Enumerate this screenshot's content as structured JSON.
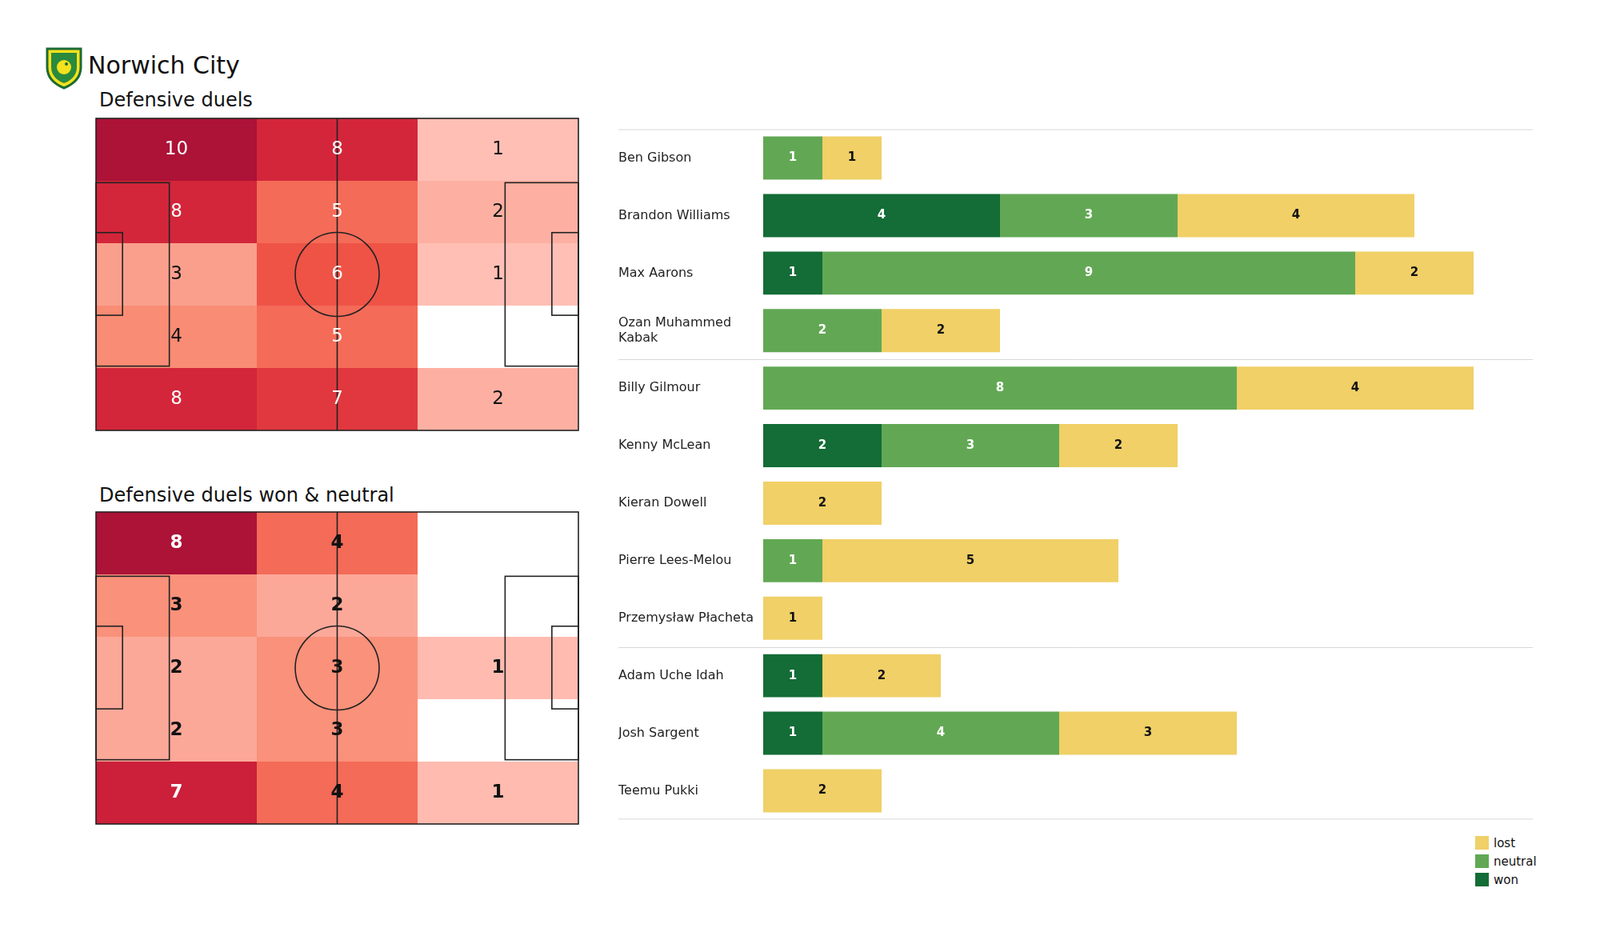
{
  "title": "Norwich City",
  "chart_data": [
    {
      "type": "heatmap",
      "title": "Defensive duels",
      "cells": [
        [
          10,
          8,
          1
        ],
        [
          8,
          5,
          2
        ],
        [
          3,
          6,
          1
        ],
        [
          4,
          5,
          null
        ],
        [
          8,
          7,
          2
        ]
      ]
    },
    {
      "type": "heatmap",
      "title": "Defensive duels won & neutral",
      "cells": [
        [
          8,
          4,
          null
        ],
        [
          3,
          2,
          null
        ],
        [
          2,
          3,
          1
        ],
        [
          2,
          3,
          null
        ],
        [
          7,
          4,
          1
        ]
      ]
    },
    {
      "type": "bar",
      "orientation": "horizontal",
      "stacked": true,
      "data_labels": true,
      "tick_labels": "y",
      "legend": "bottom right",
      "xlim": [
        0,
        13
      ],
      "categories": [
        "Ben Gibson",
        "Brandon Williams",
        "Max Aarons",
        [
          "Ozan Muhammed",
          "Kabak"
        ],
        "Billy Gilmour",
        "Kenny McLean",
        "Kieran Dowell",
        "Pierre Lees-Melou",
        "Przemysław Płacheta",
        "Adam Uche Idah",
        "Josh Sargent",
        "Teemu Pukki"
      ],
      "series": [
        {
          "name": "won",
          "color": "#146c36",
          "values": [
            null,
            4,
            1,
            null,
            null,
            2,
            null,
            null,
            null,
            1,
            1,
            null
          ]
        },
        {
          "name": "neutral",
          "color": "#62a854",
          "values": [
            1,
            3,
            9,
            2,
            8,
            3,
            null,
            1,
            null,
            null,
            4,
            null
          ]
        },
        {
          "name": "lost",
          "color": "#f0d067",
          "values": [
            1,
            4,
            2,
            2,
            4,
            2,
            2,
            5,
            1,
            2,
            3,
            2
          ]
        }
      ]
    }
  ]
}
